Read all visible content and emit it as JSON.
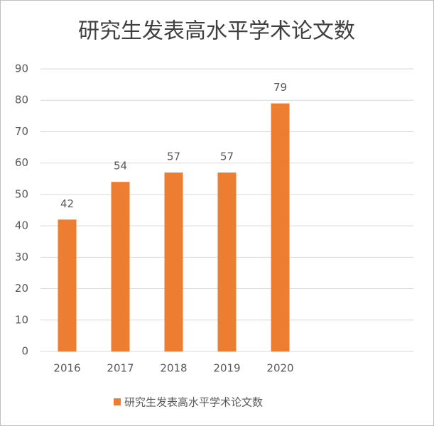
{
  "chart_data": {
    "type": "bar",
    "title": "研究生发表高水平学术论文数",
    "categories": [
      "2016",
      "2017",
      "2018",
      "2019",
      "2020",
      null,
      null
    ],
    "series": [
      {
        "name": "研究生发表高水平学术论文数",
        "color": "#ed7d31",
        "values": [
          42,
          54,
          57,
          57,
          79,
          null,
          null
        ]
      }
    ],
    "ylim": [
      0,
      90
    ],
    "yticks": [
      0,
      10,
      20,
      30,
      40,
      50,
      60,
      70,
      80,
      90
    ],
    "grid": true,
    "data_labels": true,
    "legend": "bottom"
  }
}
